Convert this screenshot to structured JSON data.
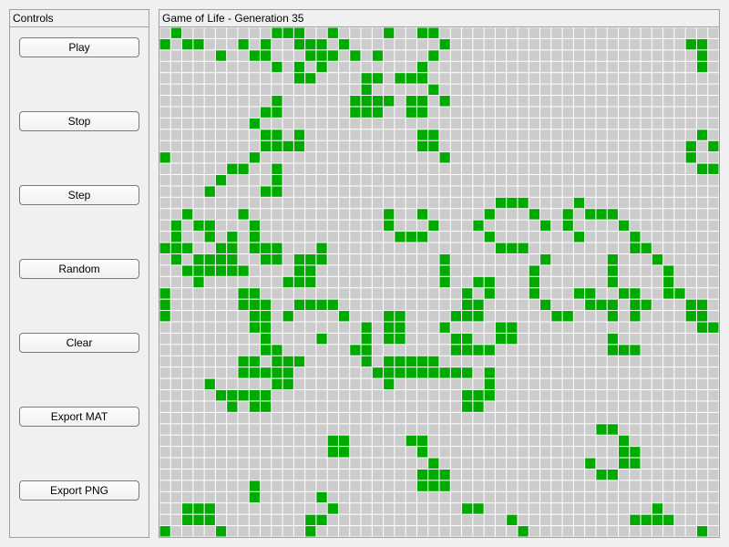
{
  "controls_panel": {
    "title": "Controls",
    "buttons": [
      {
        "id": "play",
        "label": "Play"
      },
      {
        "id": "stop",
        "label": "Stop"
      },
      {
        "id": "step",
        "label": "Step"
      },
      {
        "id": "random",
        "label": "Random"
      },
      {
        "id": "clear",
        "label": "Clear"
      },
      {
        "id": "export_mat",
        "label": "Export MAT"
      },
      {
        "id": "export_png",
        "label": "Export PNG"
      }
    ]
  },
  "game_panel": {
    "title": "Game of Life - Generation 35"
  },
  "grid": {
    "cols": 50,
    "rows": 45,
    "alive_color": "#00aa00",
    "dead_color": "#cccccc",
    "line_color": "#ffffff",
    "alive_cells": [
      [
        1,
        0
      ],
      [
        10,
        0
      ],
      [
        11,
        0
      ],
      [
        12,
        0
      ],
      [
        15,
        0
      ],
      [
        20,
        0
      ],
      [
        23,
        0
      ],
      [
        24,
        0
      ],
      [
        0,
        1
      ],
      [
        2,
        1
      ],
      [
        3,
        1
      ],
      [
        7,
        1
      ],
      [
        9,
        1
      ],
      [
        12,
        1
      ],
      [
        13,
        1
      ],
      [
        14,
        1
      ],
      [
        16,
        1
      ],
      [
        25,
        1
      ],
      [
        47,
        1
      ],
      [
        48,
        1
      ],
      [
        5,
        2
      ],
      [
        8,
        2
      ],
      [
        9,
        2
      ],
      [
        13,
        2
      ],
      [
        14,
        2
      ],
      [
        15,
        2
      ],
      [
        17,
        2
      ],
      [
        19,
        2
      ],
      [
        24,
        2
      ],
      [
        48,
        2
      ],
      [
        10,
        3
      ],
      [
        12,
        3
      ],
      [
        14,
        3
      ],
      [
        23,
        3
      ],
      [
        48,
        3
      ],
      [
        12,
        4
      ],
      [
        13,
        4
      ],
      [
        18,
        4
      ],
      [
        19,
        4
      ],
      [
        21,
        4
      ],
      [
        22,
        4
      ],
      [
        23,
        4
      ],
      [
        18,
        5
      ],
      [
        24,
        5
      ],
      [
        10,
        6
      ],
      [
        17,
        6
      ],
      [
        18,
        6
      ],
      [
        19,
        6
      ],
      [
        20,
        6
      ],
      [
        22,
        6
      ],
      [
        23,
        6
      ],
      [
        25,
        6
      ],
      [
        9,
        7
      ],
      [
        10,
        7
      ],
      [
        17,
        7
      ],
      [
        18,
        7
      ],
      [
        19,
        7
      ],
      [
        22,
        7
      ],
      [
        23,
        7
      ],
      [
        8,
        8
      ],
      [
        9,
        9
      ],
      [
        10,
        9
      ],
      [
        12,
        9
      ],
      [
        23,
        9
      ],
      [
        24,
        9
      ],
      [
        48,
        9
      ],
      [
        9,
        10
      ],
      [
        10,
        10
      ],
      [
        11,
        10
      ],
      [
        12,
        10
      ],
      [
        23,
        10
      ],
      [
        24,
        10
      ],
      [
        47,
        10
      ],
      [
        49,
        10
      ],
      [
        0,
        11
      ],
      [
        8,
        11
      ],
      [
        25,
        11
      ],
      [
        47,
        11
      ],
      [
        6,
        12
      ],
      [
        7,
        12
      ],
      [
        10,
        12
      ],
      [
        48,
        12
      ],
      [
        49,
        12
      ],
      [
        5,
        13
      ],
      [
        10,
        13
      ],
      [
        4,
        14
      ],
      [
        9,
        14
      ],
      [
        10,
        14
      ],
      [
        30,
        15
      ],
      [
        31,
        15
      ],
      [
        32,
        15
      ],
      [
        37,
        15
      ],
      [
        2,
        16
      ],
      [
        7,
        16
      ],
      [
        20,
        16
      ],
      [
        23,
        16
      ],
      [
        29,
        16
      ],
      [
        33,
        16
      ],
      [
        36,
        16
      ],
      [
        38,
        16
      ],
      [
        39,
        16
      ],
      [
        40,
        16
      ],
      [
        1,
        17
      ],
      [
        3,
        17
      ],
      [
        4,
        17
      ],
      [
        8,
        17
      ],
      [
        20,
        17
      ],
      [
        24,
        17
      ],
      [
        28,
        17
      ],
      [
        34,
        17
      ],
      [
        36,
        17
      ],
      [
        41,
        17
      ],
      [
        1,
        18
      ],
      [
        4,
        18
      ],
      [
        6,
        18
      ],
      [
        8,
        18
      ],
      [
        21,
        18
      ],
      [
        22,
        18
      ],
      [
        23,
        18
      ],
      [
        29,
        18
      ],
      [
        37,
        18
      ],
      [
        42,
        18
      ],
      [
        0,
        19
      ],
      [
        1,
        19
      ],
      [
        2,
        19
      ],
      [
        5,
        19
      ],
      [
        6,
        19
      ],
      [
        8,
        19
      ],
      [
        9,
        19
      ],
      [
        10,
        19
      ],
      [
        14,
        19
      ],
      [
        30,
        19
      ],
      [
        31,
        19
      ],
      [
        32,
        19
      ],
      [
        42,
        19
      ],
      [
        43,
        19
      ],
      [
        1,
        20
      ],
      [
        3,
        20
      ],
      [
        4,
        20
      ],
      [
        5,
        20
      ],
      [
        6,
        20
      ],
      [
        9,
        20
      ],
      [
        10,
        20
      ],
      [
        12,
        20
      ],
      [
        13,
        20
      ],
      [
        14,
        20
      ],
      [
        25,
        20
      ],
      [
        34,
        20
      ],
      [
        40,
        20
      ],
      [
        44,
        20
      ],
      [
        2,
        21
      ],
      [
        3,
        21
      ],
      [
        4,
        21
      ],
      [
        5,
        21
      ],
      [
        6,
        21
      ],
      [
        7,
        21
      ],
      [
        12,
        21
      ],
      [
        13,
        21
      ],
      [
        25,
        21
      ],
      [
        33,
        21
      ],
      [
        40,
        21
      ],
      [
        45,
        21
      ],
      [
        3,
        22
      ],
      [
        11,
        22
      ],
      [
        12,
        22
      ],
      [
        13,
        22
      ],
      [
        25,
        22
      ],
      [
        28,
        22
      ],
      [
        29,
        22
      ],
      [
        33,
        22
      ],
      [
        40,
        22
      ],
      [
        45,
        22
      ],
      [
        0,
        23
      ],
      [
        7,
        23
      ],
      [
        8,
        23
      ],
      [
        27,
        23
      ],
      [
        29,
        23
      ],
      [
        33,
        23
      ],
      [
        37,
        23
      ],
      [
        38,
        23
      ],
      [
        41,
        23
      ],
      [
        42,
        23
      ],
      [
        45,
        23
      ],
      [
        46,
        23
      ],
      [
        0,
        24
      ],
      [
        7,
        24
      ],
      [
        8,
        24
      ],
      [
        9,
        24
      ],
      [
        12,
        24
      ],
      [
        13,
        24
      ],
      [
        14,
        24
      ],
      [
        15,
        24
      ],
      [
        27,
        24
      ],
      [
        28,
        24
      ],
      [
        34,
        24
      ],
      [
        38,
        24
      ],
      [
        39,
        24
      ],
      [
        40,
        24
      ],
      [
        42,
        24
      ],
      [
        43,
        24
      ],
      [
        47,
        24
      ],
      [
        48,
        24
      ],
      [
        0,
        25
      ],
      [
        8,
        25
      ],
      [
        9,
        25
      ],
      [
        11,
        25
      ],
      [
        16,
        25
      ],
      [
        20,
        25
      ],
      [
        21,
        25
      ],
      [
        26,
        25
      ],
      [
        27,
        25
      ],
      [
        28,
        25
      ],
      [
        35,
        25
      ],
      [
        36,
        25
      ],
      [
        40,
        25
      ],
      [
        42,
        25
      ],
      [
        47,
        25
      ],
      [
        48,
        25
      ],
      [
        8,
        26
      ],
      [
        9,
        26
      ],
      [
        18,
        26
      ],
      [
        20,
        26
      ],
      [
        21,
        26
      ],
      [
        25,
        26
      ],
      [
        30,
        26
      ],
      [
        31,
        26
      ],
      [
        48,
        26
      ],
      [
        49,
        26
      ],
      [
        9,
        27
      ],
      [
        14,
        27
      ],
      [
        18,
        27
      ],
      [
        20,
        27
      ],
      [
        21,
        27
      ],
      [
        26,
        27
      ],
      [
        27,
        27
      ],
      [
        30,
        27
      ],
      [
        31,
        27
      ],
      [
        40,
        27
      ],
      [
        9,
        28
      ],
      [
        10,
        28
      ],
      [
        17,
        28
      ],
      [
        18,
        28
      ],
      [
        26,
        28
      ],
      [
        27,
        28
      ],
      [
        28,
        28
      ],
      [
        29,
        28
      ],
      [
        40,
        28
      ],
      [
        41,
        28
      ],
      [
        42,
        28
      ],
      [
        7,
        29
      ],
      [
        8,
        29
      ],
      [
        10,
        29
      ],
      [
        11,
        29
      ],
      [
        12,
        29
      ],
      [
        18,
        29
      ],
      [
        20,
        29
      ],
      [
        21,
        29
      ],
      [
        22,
        29
      ],
      [
        23,
        29
      ],
      [
        24,
        29
      ],
      [
        7,
        30
      ],
      [
        8,
        30
      ],
      [
        9,
        30
      ],
      [
        10,
        30
      ],
      [
        11,
        30
      ],
      [
        19,
        30
      ],
      [
        20,
        30
      ],
      [
        21,
        30
      ],
      [
        22,
        30
      ],
      [
        23,
        30
      ],
      [
        24,
        30
      ],
      [
        25,
        30
      ],
      [
        26,
        30
      ],
      [
        27,
        30
      ],
      [
        29,
        30
      ],
      [
        4,
        31
      ],
      [
        10,
        31
      ],
      [
        11,
        31
      ],
      [
        20,
        31
      ],
      [
        29,
        31
      ],
      [
        5,
        32
      ],
      [
        6,
        32
      ],
      [
        7,
        32
      ],
      [
        8,
        32
      ],
      [
        9,
        32
      ],
      [
        27,
        32
      ],
      [
        28,
        32
      ],
      [
        29,
        32
      ],
      [
        6,
        33
      ],
      [
        8,
        33
      ],
      [
        9,
        33
      ],
      [
        27,
        33
      ],
      [
        28,
        33
      ],
      [
        39,
        35
      ],
      [
        40,
        35
      ],
      [
        15,
        36
      ],
      [
        16,
        36
      ],
      [
        22,
        36
      ],
      [
        23,
        36
      ],
      [
        41,
        36
      ],
      [
        15,
        37
      ],
      [
        16,
        37
      ],
      [
        23,
        37
      ],
      [
        41,
        37
      ],
      [
        42,
        37
      ],
      [
        24,
        38
      ],
      [
        38,
        38
      ],
      [
        41,
        38
      ],
      [
        42,
        38
      ],
      [
        23,
        39
      ],
      [
        24,
        39
      ],
      [
        25,
        39
      ],
      [
        39,
        39
      ],
      [
        40,
        39
      ],
      [
        8,
        40
      ],
      [
        23,
        40
      ],
      [
        24,
        40
      ],
      [
        25,
        40
      ],
      [
        8,
        41
      ],
      [
        14,
        41
      ],
      [
        2,
        42
      ],
      [
        3,
        42
      ],
      [
        4,
        42
      ],
      [
        15,
        42
      ],
      [
        27,
        42
      ],
      [
        28,
        42
      ],
      [
        44,
        42
      ],
      [
        2,
        43
      ],
      [
        3,
        43
      ],
      [
        4,
        43
      ],
      [
        13,
        43
      ],
      [
        14,
        43
      ],
      [
        31,
        43
      ],
      [
        42,
        43
      ],
      [
        43,
        43
      ],
      [
        44,
        43
      ],
      [
        45,
        43
      ],
      [
        0,
        44
      ],
      [
        5,
        44
      ],
      [
        13,
        44
      ],
      [
        32,
        44
      ],
      [
        48,
        44
      ]
    ]
  }
}
